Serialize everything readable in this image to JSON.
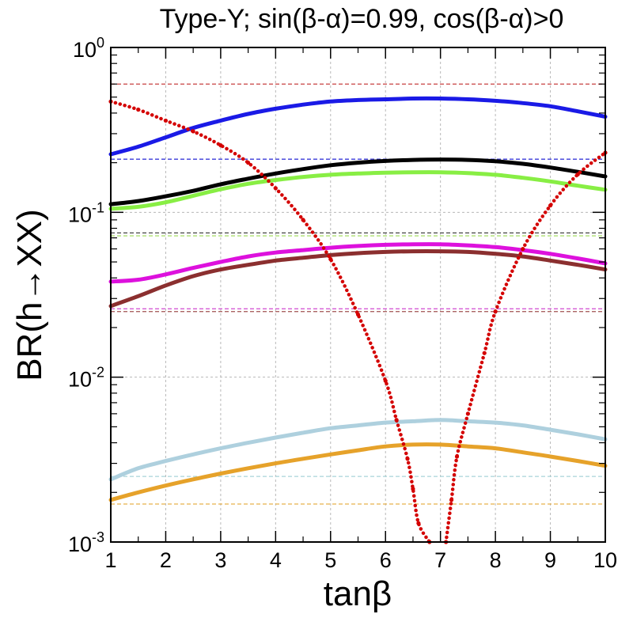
{
  "chart_data": {
    "type": "line",
    "title": "Type-Y; sin(β-α)=0.99, cos(β-α)>0",
    "xlabel": "tanβ",
    "ylabel": "BR(h→XX)",
    "xlim": [
      1,
      10
    ],
    "ylim": [
      0.001,
      1
    ],
    "yscale": "log",
    "x_ticks": [
      "1",
      "2",
      "3",
      "4",
      "5",
      "6",
      "7",
      "8",
      "9",
      "10"
    ],
    "y_ticks": [
      {
        "base": "10",
        "exp": "0"
      },
      {
        "base": "10",
        "exp": "-1"
      },
      {
        "base": "10",
        "exp": "-2"
      },
      {
        "base": "10",
        "exp": "-3"
      }
    ],
    "x": [
      1,
      1.5,
      2,
      2.5,
      3,
      3.5,
      4,
      4.5,
      5,
      5.5,
      6,
      6.5,
      7,
      7.5,
      8,
      8.5,
      9,
      9.5,
      10
    ],
    "series": [
      {
        "name": "blue",
        "color": "#1a1ae6",
        "values": [
          0.225,
          0.25,
          0.285,
          0.325,
          0.36,
          0.395,
          0.425,
          0.45,
          0.47,
          0.48,
          0.485,
          0.49,
          0.49,
          0.485,
          0.475,
          0.46,
          0.44,
          0.41,
          0.38
        ]
      },
      {
        "name": "black",
        "color": "#000000",
        "values": [
          0.112,
          0.117,
          0.125,
          0.135,
          0.148,
          0.16,
          0.172,
          0.183,
          0.193,
          0.2,
          0.205,
          0.208,
          0.209,
          0.208,
          0.204,
          0.197,
          0.187,
          0.176,
          0.165
        ]
      },
      {
        "name": "green",
        "color": "#88ee44",
        "values": [
          0.105,
          0.108,
          0.115,
          0.126,
          0.138,
          0.149,
          0.157,
          0.164,
          0.169,
          0.172,
          0.174,
          0.175,
          0.175,
          0.173,
          0.169,
          0.162,
          0.154,
          0.145,
          0.137
        ]
      },
      {
        "name": "magenta",
        "color": "#dd11dd",
        "values": [
          0.038,
          0.039,
          0.042,
          0.046,
          0.05,
          0.054,
          0.057,
          0.059,
          0.061,
          0.0625,
          0.0635,
          0.064,
          0.064,
          0.063,
          0.0615,
          0.059,
          0.056,
          0.0525,
          0.049
        ]
      },
      {
        "name": "brown",
        "color": "#8b2f2f",
        "values": [
          0.027,
          0.031,
          0.036,
          0.041,
          0.045,
          0.048,
          0.051,
          0.053,
          0.055,
          0.0565,
          0.0575,
          0.058,
          0.058,
          0.0575,
          0.056,
          0.054,
          0.051,
          0.048,
          0.045
        ]
      },
      {
        "name": "lightblue",
        "color": "#aed0de",
        "values": [
          0.0024,
          0.0028,
          0.0031,
          0.0034,
          0.0037,
          0.004,
          0.0043,
          0.0046,
          0.0049,
          0.0051,
          0.0053,
          0.0054,
          0.0055,
          0.0054,
          0.0053,
          0.0051,
          0.0048,
          0.0045,
          0.0042
        ]
      },
      {
        "name": "orange",
        "color": "#e6a22a",
        "values": [
          0.0018,
          0.002,
          0.0022,
          0.0024,
          0.0026,
          0.0028,
          0.003,
          0.0032,
          0.0034,
          0.0036,
          0.0038,
          0.0039,
          0.0039,
          0.0038,
          0.0037,
          0.0035,
          0.0033,
          0.0031,
          0.0029
        ]
      },
      {
        "name": "red",
        "color": "#d40000",
        "dotted": true,
        "x": [
          1,
          1.5,
          2,
          2.5,
          3,
          3.5,
          4,
          4.5,
          5,
          5.5,
          6,
          6.2,
          6.4,
          6.5,
          6.6,
          6.8,
          7.1,
          7.2,
          7.3,
          7.5,
          7.8,
          8,
          8.5,
          9,
          9.5,
          10
        ],
        "values": [
          0.47,
          0.42,
          0.36,
          0.31,
          0.255,
          0.2,
          0.14,
          0.09,
          0.052,
          0.024,
          0.0095,
          0.0055,
          0.0032,
          0.0021,
          0.0013,
          0.001,
          0.001,
          0.0018,
          0.0033,
          0.006,
          0.014,
          0.025,
          0.06,
          0.11,
          0.17,
          0.23
        ]
      }
    ],
    "reference_lines": [
      {
        "name": "red-dashed",
        "color": "#c84040",
        "value": 0.6
      },
      {
        "name": "blue-dashed",
        "color": "#3a3ad8",
        "value": 0.21
      },
      {
        "name": "black-dashed",
        "color": "#444444",
        "value": 0.075
      },
      {
        "name": "green-dashed",
        "color": "#aee070",
        "value": 0.072
      },
      {
        "name": "magenta-dashed",
        "color": "#d04ad0",
        "value": 0.026
      },
      {
        "name": "brown-dashed",
        "color": "#a05050",
        "value": 0.025
      },
      {
        "name": "lightblue-dashed",
        "color": "#a8d4d8",
        "value": 0.0025
      },
      {
        "name": "orange-dashed",
        "color": "#e6b04a",
        "value": 0.0017
      }
    ]
  }
}
